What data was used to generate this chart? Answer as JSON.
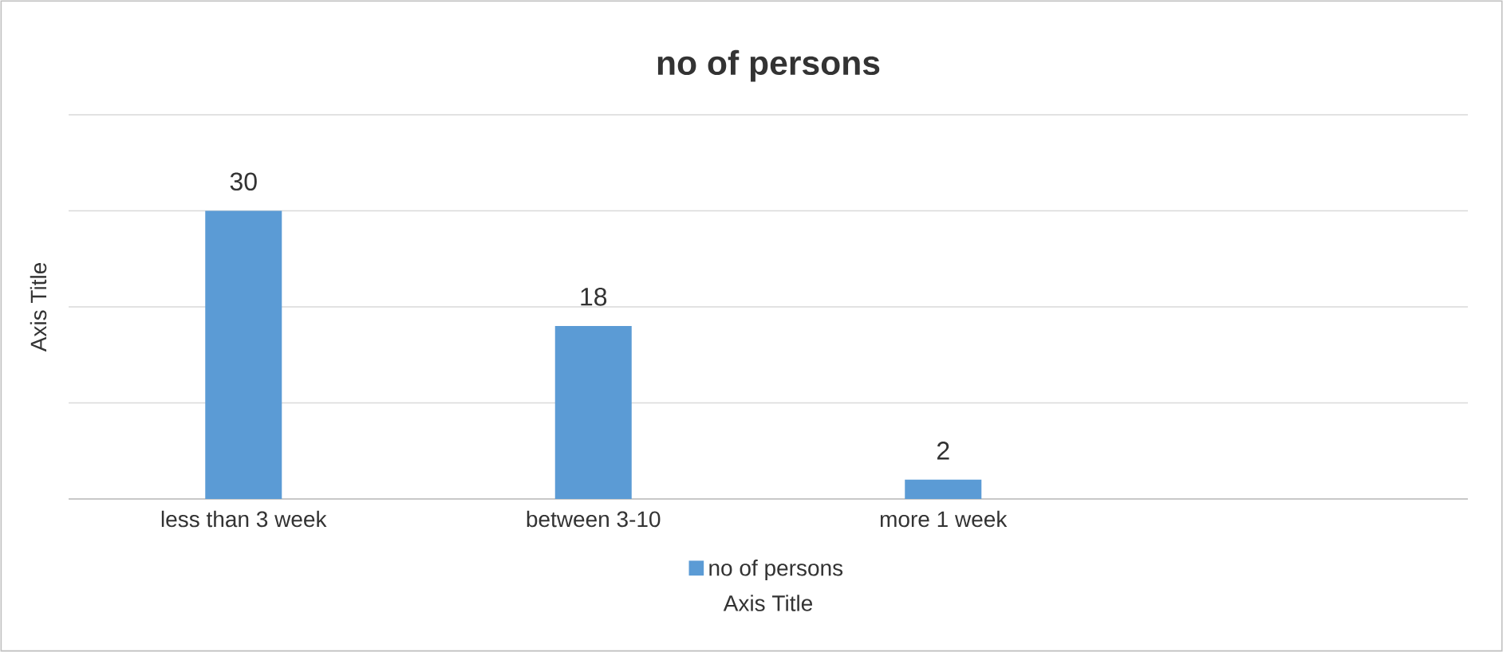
{
  "chart_data": {
    "type": "bar",
    "title": "no of persons",
    "xlabel": "Axis Title",
    "ylabel": "Axis Title",
    "categories": [
      "less than 3 week",
      "between 3-10",
      "more 1 week",
      null
    ],
    "series": [
      {
        "name": "no of persons",
        "color": "#5b9bd5",
        "values": [
          30,
          18,
          2,
          null
        ]
      }
    ],
    "ylim": [
      0,
      40
    ],
    "yticks": [
      {
        "value": 0,
        "label": null
      },
      {
        "value": 10,
        "label": null
      },
      {
        "value": 20,
        "label": null
      },
      {
        "value": 30,
        "label": null
      },
      {
        "value": 40,
        "label": null
      }
    ],
    "grid": "y",
    "legend": "bottom",
    "tick_labels": "x",
    "data_labels": true
  }
}
